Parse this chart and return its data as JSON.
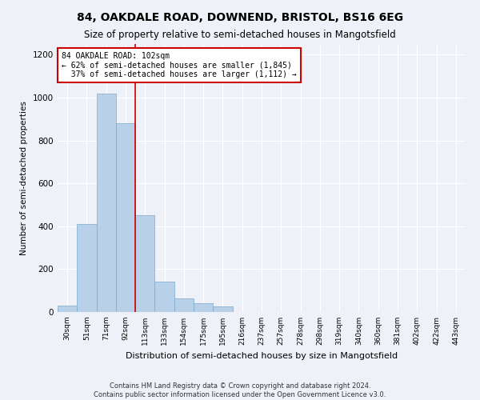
{
  "title": "84, OAKDALE ROAD, DOWNEND, BRISTOL, BS16 6EG",
  "subtitle": "Size of property relative to semi-detached houses in Mangotsfield",
  "xlabel": "Distribution of semi-detached houses by size in Mangotsfield",
  "ylabel": "Number of semi-detached properties",
  "bin_labels": [
    "30sqm",
    "51sqm",
    "71sqm",
    "92sqm",
    "113sqm",
    "133sqm",
    "154sqm",
    "175sqm",
    "195sqm",
    "216sqm",
    "237sqm",
    "257sqm",
    "278sqm",
    "298sqm",
    "319sqm",
    "340sqm",
    "360sqm",
    "381sqm",
    "402sqm",
    "422sqm",
    "443sqm"
  ],
  "bar_heights": [
    30,
    410,
    1020,
    880,
    450,
    140,
    65,
    40,
    25,
    0,
    0,
    0,
    0,
    0,
    0,
    0,
    0,
    0,
    0,
    0,
    0
  ],
  "bar_color": "#b8d0e8",
  "bar_edge_color": "#7aaad0",
  "property_label": "84 OAKDALE ROAD: 102sqm",
  "smaller_pct": 62,
  "smaller_count": 1845,
  "larger_pct": 37,
  "larger_count": 1112,
  "vline_color": "#cc0000",
  "annotation_box_color": "#ffffff",
  "annotation_box_edge": "#cc0000",
  "ylim": [
    0,
    1250
  ],
  "yticks": [
    0,
    200,
    400,
    600,
    800,
    1000,
    1200
  ],
  "footer_line1": "Contains HM Land Registry data © Crown copyright and database right 2024.",
  "footer_line2": "Contains public sector information licensed under the Open Government Licence v3.0.",
  "bg_color": "#eef2f8"
}
